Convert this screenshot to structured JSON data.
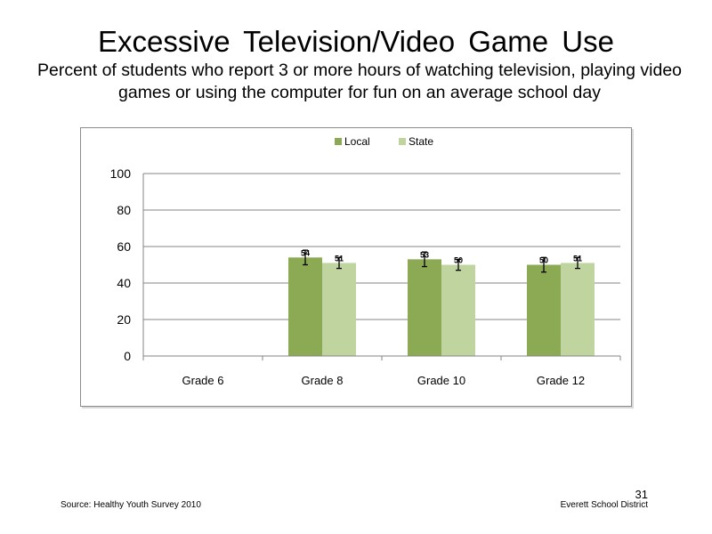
{
  "title": "Excessive Television/Video  Game Use",
  "subtitle": "Percent of students who report 3 or more hours of watching television, playing video games or using the computer for fun on an average school day",
  "footer": {
    "source": "Source: Healthy Youth Survey 2010",
    "district": "Everett School District",
    "slide_number": "31"
  },
  "chart_data": {
    "type": "bar",
    "categories": [
      "Grade 6",
      "Grade 8",
      "Grade 10",
      "Grade 12"
    ],
    "series": [
      {
        "name": "Local",
        "color": "#8caa54",
        "values": [
          null,
          54,
          53,
          50
        ],
        "error": [
          null,
          [
            50,
            58
          ],
          [
            49,
            57
          ],
          [
            46,
            54
          ]
        ]
      },
      {
        "name": "State",
        "color": "#bfd49e",
        "values": [
          null,
          51,
          50,
          51
        ],
        "error": [
          null,
          [
            48,
            54
          ],
          [
            47,
            53
          ],
          [
            48,
            54
          ]
        ]
      }
    ],
    "ylim": [
      0,
      100
    ],
    "yticks": [
      0,
      20,
      40,
      60,
      80,
      100
    ],
    "grid": true,
    "legend_position": "top",
    "error_bars": true,
    "data_labels": true
  }
}
